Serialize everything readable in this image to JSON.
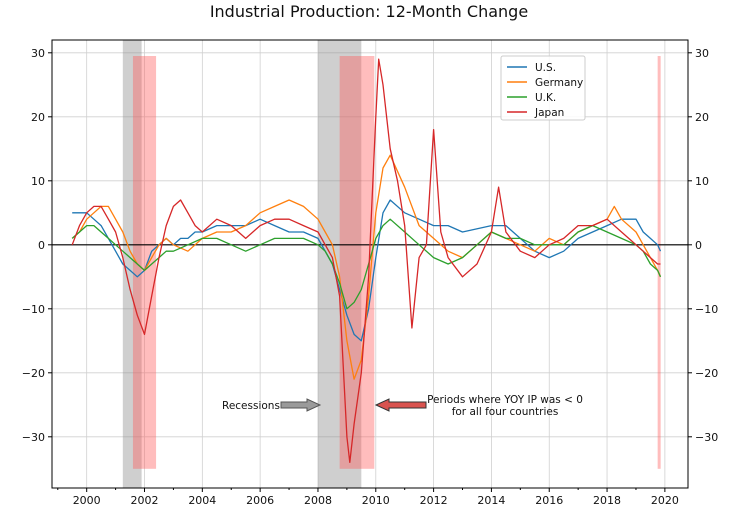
{
  "chart_data": {
    "type": "line",
    "title": "Industrial Production: 12-Month Change",
    "xlabel": "",
    "ylabel": "",
    "xlim": [
      1998.8,
      2020.8
    ],
    "ylim": [
      -38,
      32
    ],
    "xticks": [
      2000,
      2002,
      2004,
      2006,
      2008,
      2010,
      2012,
      2014,
      2016,
      2018,
      2020
    ],
    "xtick_labels": [
      "2000",
      "2002",
      "2004",
      "2006",
      "2008",
      "2010",
      "2012",
      "2014",
      "2016",
      "2018",
      "2020"
    ],
    "yticks": [
      30,
      20,
      10,
      0,
      -10,
      -20,
      -30
    ],
    "ytick_labels": [
      "30",
      "20",
      "10",
      "0",
      "−10",
      "−20",
      "−30"
    ],
    "grid": true,
    "legend_position": "top-right",
    "recessions": [
      [
        2001.25,
        2001.9
      ],
      [
        2008.0,
        2009.5
      ]
    ],
    "all_negative_periods": [
      [
        2001.6,
        2002.4
      ],
      [
        2008.75,
        2009.95
      ],
      [
        2019.75,
        2019.8
      ]
    ],
    "annotations": [
      {
        "text": "Recessions",
        "arrow_color": "#999999"
      },
      {
        "text_lines": [
          "Periods where YOY IP was < 0",
          "for all four countries"
        ],
        "arrow_color": "#d9534f"
      }
    ],
    "series": [
      {
        "name": "U.S.",
        "color": "#1f77b4",
        "x": [
          1999.5,
          1999.75,
          2000,
          2000.25,
          2000.5,
          2000.75,
          2001,
          2001.25,
          2001.5,
          2001.75,
          2002,
          2002.25,
          2002.5,
          2002.75,
          2003,
          2003.25,
          2003.5,
          2003.75,
          2004,
          2004.5,
          2005,
          2005.5,
          2006,
          2006.5,
          2007,
          2007.5,
          2008,
          2008.25,
          2008.5,
          2008.75,
          2009,
          2009.25,
          2009.5,
          2009.75,
          2010,
          2010.25,
          2010.5,
          2011,
          2011.5,
          2012,
          2012.5,
          2013,
          2014,
          2014.5,
          2015,
          2015.5,
          2016,
          2016.5,
          2017,
          2017.5,
          2018,
          2018.5,
          2019,
          2019.25,
          2019.5,
          2019.75,
          2019.85
        ],
        "y": [
          5,
          5,
          5,
          4,
          3,
          1,
          -1,
          -3,
          -4,
          -5,
          -4,
          -1,
          0,
          1,
          0,
          1,
          1,
          2,
          2,
          3,
          3,
          3,
          4,
          3,
          2,
          2,
          1,
          -1,
          -3,
          -7,
          -11,
          -14,
          -15,
          -10,
          -2,
          5,
          7,
          5,
          4,
          3,
          3,
          2,
          3,
          3,
          1,
          -1,
          -2,
          -1,
          1,
          2,
          3,
          4,
          4,
          2,
          1,
          0,
          -1
        ]
      },
      {
        "name": "Germany",
        "color": "#ff7f0e",
        "x": [
          1999.5,
          1999.75,
          2000,
          2000.25,
          2000.5,
          2000.75,
          2001,
          2001.25,
          2001.5,
          2001.75,
          2002,
          2002.25,
          2002.5,
          2002.75,
          2003,
          2003.5,
          2004,
          2004.5,
          2005,
          2005.5,
          2006,
          2006.5,
          2007,
          2007.5,
          2008,
          2008.25,
          2008.5,
          2008.75,
          2009,
          2009.25,
          2009.5,
          2009.75,
          2010,
          2010.25,
          2010.5,
          2011,
          2011.5,
          2012,
          2012.5,
          2013,
          2013.5,
          2014,
          2014.5,
          2015,
          2015.5,
          2016,
          2016.5,
          2017,
          2017.5,
          2018,
          2018.25,
          2018.5,
          2019,
          2019.25,
          2019.5,
          2019.75,
          2019.85
        ],
        "y": [
          1,
          2,
          4,
          5,
          6,
          6,
          4,
          2,
          -1,
          -3,
          -4,
          -2,
          0,
          1,
          0,
          -1,
          1,
          2,
          2,
          3,
          5,
          6,
          7,
          6,
          4,
          2,
          0,
          -5,
          -15,
          -21,
          -18,
          -8,
          5,
          12,
          14,
          9,
          3,
          1,
          -1,
          -2,
          0,
          2,
          1,
          0,
          -1,
          1,
          0,
          2,
          3,
          4,
          6,
          4,
          2,
          0,
          -2,
          -4,
          -5
        ]
      },
      {
        "name": "U.K.",
        "color": "#2ca02c",
        "x": [
          1999.5,
          1999.75,
          2000,
          2000.25,
          2000.5,
          2000.75,
          2001,
          2001.25,
          2001.5,
          2001.75,
          2002,
          2002.25,
          2002.5,
          2002.75,
          2003,
          2003.5,
          2004,
          2004.5,
          2005,
          2005.5,
          2006,
          2006.5,
          2007,
          2007.5,
          2008,
          2008.25,
          2008.5,
          2008.75,
          2009,
          2009.25,
          2009.5,
          2009.75,
          2010,
          2010.25,
          2010.5,
          2011,
          2011.5,
          2012,
          2012.5,
          2013,
          2013.5,
          2014,
          2014.5,
          2015,
          2015.5,
          2016,
          2016.5,
          2017,
          2017.5,
          2018,
          2018.5,
          2019,
          2019.25,
          2019.5,
          2019.75,
          2019.85
        ],
        "y": [
          1,
          2,
          3,
          3,
          2,
          1,
          0,
          -1,
          -2,
          -3,
          -4,
          -3,
          -2,
          -1,
          -1,
          0,
          1,
          1,
          0,
          -1,
          0,
          1,
          1,
          1,
          0,
          -1,
          -3,
          -6,
          -10,
          -9,
          -7,
          -3,
          1,
          3,
          4,
          2,
          0,
          -2,
          -3,
          -2,
          0,
          2,
          1,
          1,
          0,
          0,
          0,
          2,
          3,
          2,
          1,
          0,
          -1,
          -3,
          -4,
          -5
        ]
      },
      {
        "name": "Japan",
        "color": "#d62728",
        "x": [
          1999.5,
          1999.75,
          2000,
          2000.25,
          2000.5,
          2000.75,
          2001,
          2001.25,
          2001.5,
          2001.75,
          2002,
          2002.25,
          2002.5,
          2002.75,
          2003,
          2003.25,
          2003.5,
          2003.75,
          2004,
          2004.5,
          2005,
          2005.5,
          2006,
          2006.5,
          2007,
          2007.5,
          2008,
          2008.25,
          2008.5,
          2008.75,
          2009,
          2009.1,
          2009.25,
          2009.5,
          2009.75,
          2010,
          2010.1,
          2010.25,
          2010.5,
          2010.75,
          2011,
          2011.25,
          2011.5,
          2011.75,
          2012,
          2012.25,
          2012.5,
          2013,
          2013.5,
          2014,
          2014.25,
          2014.5,
          2015,
          2015.5,
          2016,
          2016.5,
          2017,
          2017.5,
          2018,
          2018.5,
          2019,
          2019.25,
          2019.5,
          2019.75,
          2019.85
        ],
        "y": [
          0,
          3,
          5,
          6,
          6,
          4,
          2,
          -2,
          -7,
          -11,
          -14,
          -8,
          -2,
          3,
          6,
          7,
          5,
          3,
          2,
          4,
          3,
          1,
          3,
          4,
          4,
          3,
          2,
          0,
          -2,
          -8,
          -30,
          -34,
          -28,
          -20,
          -5,
          20,
          29,
          25,
          15,
          10,
          3,
          -13,
          -2,
          0,
          18,
          2,
          -2,
          -5,
          -3,
          2,
          9,
          2,
          -1,
          -2,
          0,
          1,
          3,
          3,
          4,
          2,
          0,
          -1,
          -2,
          -3,
          -3
        ]
      }
    ]
  }
}
